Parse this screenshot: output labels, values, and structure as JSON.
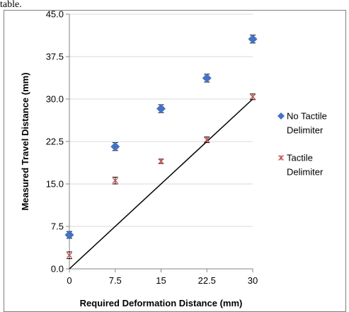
{
  "page": {
    "top_text": "table."
  },
  "colors": {
    "no_tactile": "#4472C4",
    "tactile": "#C0504D",
    "line": "#000000",
    "grid": "#D9D9D9"
  },
  "chart_data": {
    "type": "scatter",
    "title": "",
    "xlabel": "Required Deformation Distance (mm)",
    "ylabel": "Measured Travel Distance (mm)",
    "xlim": [
      0,
      30
    ],
    "ylim": [
      0,
      45
    ],
    "x_ticks": [
      "0",
      "7.5",
      "15",
      "22.5",
      "30"
    ],
    "y_ticks": [
      "0.0",
      "7.5",
      "15.0",
      "22.5",
      "30.0",
      "37.5",
      "45.0"
    ],
    "grid": "horizontal",
    "legend": "right",
    "series": [
      {
        "name": "No Tactile Delimiter",
        "marker": "diamond",
        "x": [
          0,
          7.5,
          15,
          22.5,
          30
        ],
        "y": [
          6.0,
          21.6,
          28.3,
          33.7,
          40.6
        ],
        "err": [
          0.6,
          0.7,
          0.7,
          0.7,
          0.7
        ]
      },
      {
        "name": "Tactile Delimiter",
        "marker": "asterisk",
        "x": [
          0,
          7.5,
          15,
          22.5,
          30
        ],
        "y": [
          2.4,
          15.6,
          19.0,
          22.8,
          30.4
        ],
        "err": [
          0.6,
          0.6,
          0.4,
          0.5,
          0.5
        ]
      }
    ],
    "reference_line": {
      "x": [
        0,
        30
      ],
      "y": [
        0,
        30
      ]
    }
  }
}
